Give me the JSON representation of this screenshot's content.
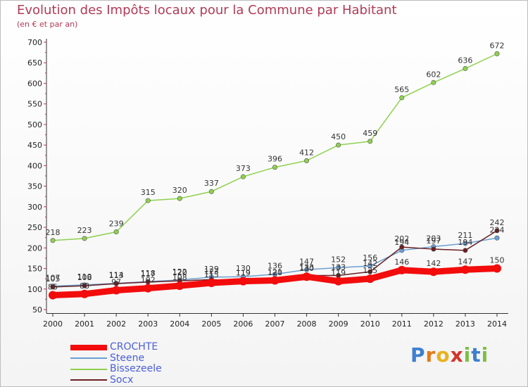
{
  "title": "Evolution des Impôts locaux pour la Commune par Habitant",
  "subtitle": "(en € et par an)",
  "brand": {
    "letters": [
      {
        "ch": "P",
        "color": "#3d7fd1"
      },
      {
        "ch": "r",
        "color": "#e57a1a"
      },
      {
        "ch": "o",
        "color": "#e8b21e"
      },
      {
        "ch": "x",
        "color": "#d4352b"
      },
      {
        "ch": "i",
        "color": "#7cc043"
      },
      {
        "ch": "t",
        "color": "#3d7fd1"
      },
      {
        "ch": "i",
        "color": "#7cc043"
      }
    ]
  },
  "chart_data": {
    "type": "line",
    "x": [
      2000,
      2001,
      2002,
      2003,
      2004,
      2005,
      2006,
      2007,
      2008,
      2009,
      2010,
      2011,
      2012,
      2013,
      2014
    ],
    "ylim": [
      50,
      700
    ],
    "yticks": [
      50,
      100,
      150,
      200,
      250,
      300,
      350,
      400,
      450,
      500,
      550,
      600,
      650,
      700
    ],
    "grid": false,
    "legend_position": "bottom-left",
    "series": [
      {
        "name": "Socx",
        "color": "#8fd14f",
        "width": 1.5,
        "marker": 3.2,
        "values": [
          218,
          223,
          239,
          315,
          320,
          337,
          373,
          396,
          412,
          450,
          459,
          565,
          602,
          636,
          672
        ]
      },
      {
        "name": "Steene",
        "color": "#6aa0d4",
        "width": 1.5,
        "marker": 3.2,
        "values": [
          107,
          110,
          114,
          118,
          122,
          129,
          130,
          136,
          147,
          152,
          156,
          194,
          203,
          211,
          224
        ]
      },
      {
        "name": "Bissezeele",
        "color": "#6b1f23",
        "width": 1.5,
        "marker": 3.2,
        "values": [
          105,
          108,
          113,
          117,
          120,
          123,
          119,
          120,
          133,
          133,
          142,
          202,
          197,
          194,
          242
        ]
      },
      {
        "name": "CROCHTE",
        "color": "#f20c0c",
        "width": 9,
        "marker": 6,
        "values": [
          85,
          88,
          97,
          102,
          108,
          115,
          119,
          121,
          130,
          119,
          125,
          146,
          142,
          147,
          150
        ]
      }
    ]
  }
}
